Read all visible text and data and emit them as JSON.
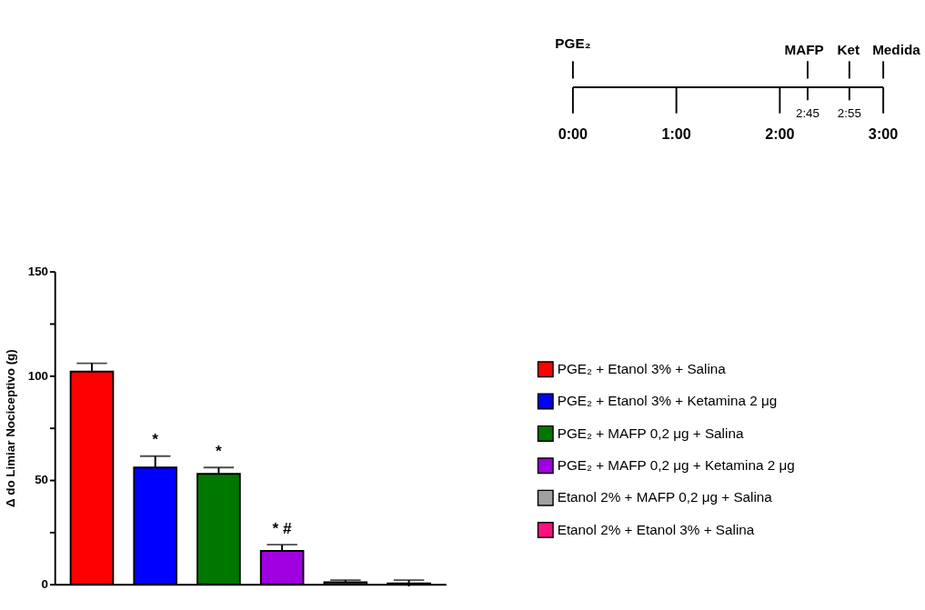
{
  "chart_data": {
    "type": "bar",
    "ylabel": "Δ do Limiar Nociceptivo (g)",
    "categories": [
      null,
      null,
      null,
      null,
      null,
      null
    ],
    "series": [
      {
        "name": "PGE₂ + Etanol 3% + Salina",
        "color": "#ff0000",
        "values": [
          102,
          null,
          null,
          null,
          null,
          null
        ],
        "errors": [
          4,
          null,
          null,
          null,
          null,
          null
        ]
      },
      {
        "name": "PGE₂ + Etanol 3% + Ketamina 2 μg",
        "color": "#0000ff",
        "values": [
          null,
          56,
          null,
          null,
          null,
          null
        ],
        "errors": [
          null,
          5.5,
          null,
          null,
          null,
          null
        ],
        "value_labels": [
          null,
          "*",
          null,
          null,
          null,
          null
        ]
      },
      {
        "name": "PGE₂ + MAFP 0,2 μg + Salina",
        "color": "#007800",
        "values": [
          null,
          null,
          53,
          null,
          null,
          null
        ],
        "errors": [
          null,
          null,
          3,
          null,
          null,
          null
        ],
        "value_labels": [
          null,
          null,
          "*",
          null,
          null,
          null
        ]
      },
      {
        "name": "PGE₂ + MAFP 0,2 μg + Ketamina 2 μg",
        "color": "#a000e0",
        "values": [
          null,
          null,
          null,
          16,
          null,
          null
        ],
        "errors": [
          null,
          null,
          null,
          3,
          null,
          null
        ],
        "value_labels": [
          null,
          null,
          null,
          "* #",
          null,
          null
        ]
      },
      {
        "name": "Etanol 2% + MAFP 0,2 μg + Salina",
        "color": "#a0a0a4",
        "values": [
          null,
          null,
          null,
          null,
          1,
          null
        ],
        "errors": [
          null,
          null,
          null,
          null,
          1,
          null
        ]
      },
      {
        "name": "Etanol 2% + Etanol 3% + Salina",
        "color": "#ff1080",
        "values": [
          null,
          null,
          null,
          null,
          null,
          0.5
        ],
        "errors": [
          null,
          null,
          null,
          null,
          null,
          1.5
        ]
      }
    ],
    "ylim": [
      0,
      150
    ],
    "yticks": [
      0,
      {
        "value": 25,
        "label": null
      },
      50,
      {
        "value": 75,
        "label": null
      },
      100,
      {
        "value": 125,
        "label": null
      },
      150
    ],
    "tick_labels": "y",
    "grid": false,
    "legend": "right",
    "annotations": [
      "PGE₂",
      "MAFP",
      "Ket",
      "Medida",
      "0:00",
      "1:00",
      "2:00",
      "2:45",
      "2:55",
      "3:00"
    ]
  }
}
